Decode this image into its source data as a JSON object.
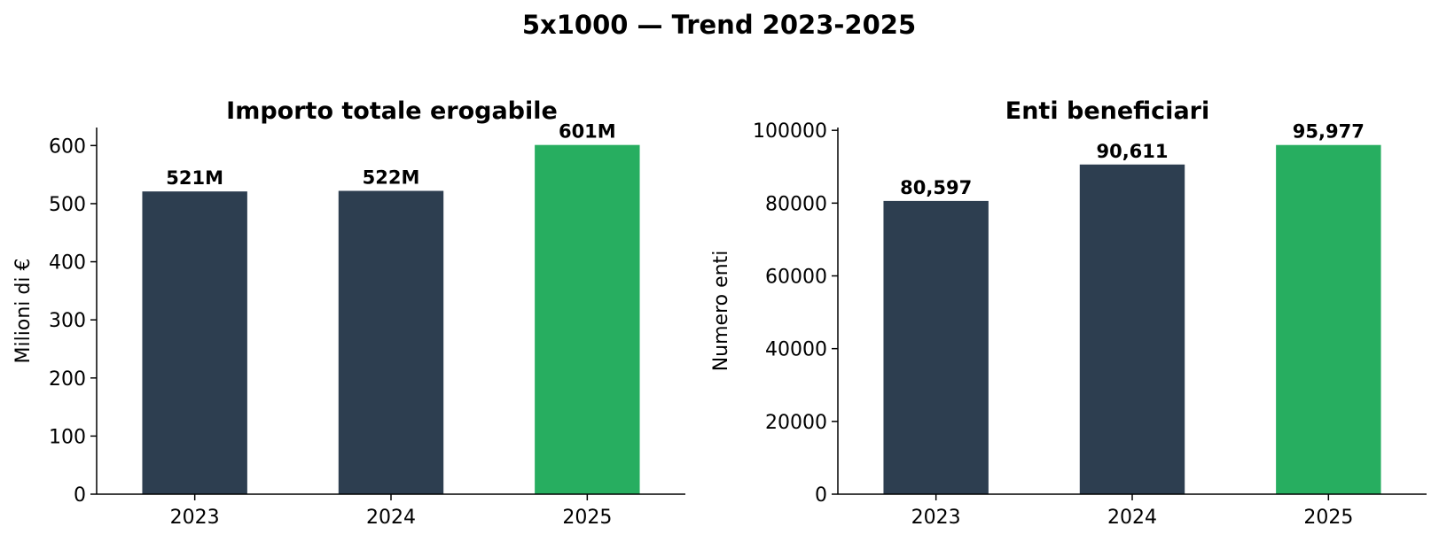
{
  "figure": {
    "title": "5x1000 — Trend 2023-2025"
  },
  "colors": {
    "default_bar": "#2d3e50",
    "highlight_bar": "#27ae60",
    "axis": "#000000",
    "text": "#000000"
  },
  "chart_data": [
    {
      "type": "bar",
      "title": "Importo totale erogabile",
      "xlabel": "",
      "ylabel": "Milioni di €",
      "categories": [
        "2023",
        "2024",
        "2025"
      ],
      "values": [
        521,
        522,
        601
      ],
      "data_labels": [
        "521M",
        "522M",
        "601M"
      ],
      "bar_colors": [
        "#2d3e50",
        "#2d3e50",
        "#27ae60"
      ],
      "ylim": [
        0,
        631
      ],
      "yticks": [
        0,
        100,
        200,
        300,
        400,
        500,
        600
      ],
      "ytick_labels": [
        "0",
        "100",
        "200",
        "300",
        "400",
        "500",
        "600"
      ],
      "grid": false,
      "legend": "none"
    },
    {
      "type": "bar",
      "title": "Enti beneficiari",
      "xlabel": "",
      "ylabel": "Numero enti",
      "categories": [
        "2023",
        "2024",
        "2025"
      ],
      "values": [
        80597,
        90611,
        95977
      ],
      "data_labels": [
        "80,597",
        "90,611",
        "95,977"
      ],
      "bar_colors": [
        "#2d3e50",
        "#2d3e50",
        "#27ae60"
      ],
      "ylim": [
        0,
        100776
      ],
      "yticks": [
        0,
        20000,
        40000,
        60000,
        80000,
        100000
      ],
      "ytick_labels": [
        "0",
        "20000",
        "40000",
        "60000",
        "80000",
        "100000"
      ],
      "grid": false,
      "legend": "none"
    }
  ]
}
